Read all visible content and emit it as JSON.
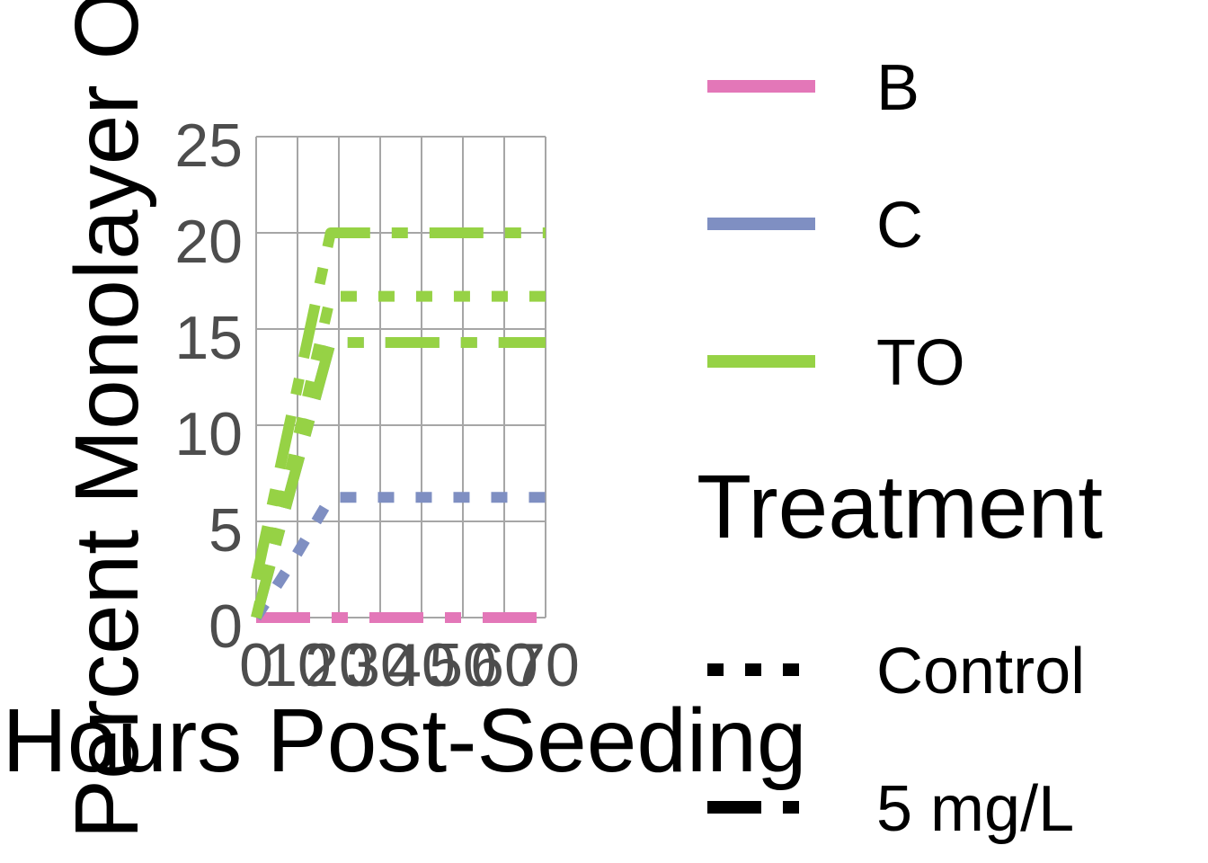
{
  "chart_data": {
    "type": "line",
    "xlabel": "Hours Post-Seeding",
    "ylabel": "Percent Monolayer Out",
    "xlim": [
      0,
      70
    ],
    "ylim": [
      0,
      25
    ],
    "x_ticks": [
      0,
      10,
      20,
      30,
      40,
      50,
      60,
      70
    ],
    "y_ticks": [
      0,
      5,
      10,
      15,
      20,
      25
    ],
    "grid": true,
    "legend_placement": "right",
    "colors": {
      "B": "#e377b8",
      "C": "#7f8fc2",
      "TO": "#96d245",
      "grid": "#a6a6a6",
      "tick_text": "#4d4d4d"
    },
    "legend": {
      "color_title": "",
      "color_entries": [
        "B",
        "C",
        "TO"
      ],
      "linetype_title": "Treatment",
      "linetype_entries": [
        "Control",
        "5 mg/L"
      ]
    },
    "series": [
      {
        "name": "B",
        "treatment": "Control",
        "x": [
          0,
          9,
          18,
          70
        ],
        "y": [
          0,
          0,
          0,
          0
        ]
      },
      {
        "name": "B",
        "treatment": "5 mg/L",
        "x": [
          0,
          9,
          18,
          70
        ],
        "y": [
          0,
          0,
          0,
          0
        ]
      },
      {
        "name": "C",
        "treatment": "Control",
        "x": [
          0,
          9,
          18,
          70
        ],
        "y": [
          0,
          3,
          6.25,
          6.25
        ]
      },
      {
        "name": "C",
        "treatment": "5 mg/L",
        "x": [
          0,
          9,
          18,
          70
        ],
        "y": [
          0,
          7.2,
          14.3,
          14.3
        ]
      },
      {
        "name": "TO",
        "treatment": "Control",
        "x": [
          0,
          9,
          18,
          70
        ],
        "y": [
          0,
          8.3,
          16.7,
          16.7
        ]
      },
      {
        "name": "TO",
        "treatment": "5 mg/L",
        "x": [
          0,
          9,
          18,
          70
        ],
        "y": [
          2,
          11,
          20,
          20
        ]
      },
      {
        "name": "TO",
        "treatment": "5 mg/L",
        "x": [
          0,
          9,
          18,
          70
        ],
        "y": [
          0,
          7.2,
          14.3,
          14.3
        ]
      }
    ]
  }
}
